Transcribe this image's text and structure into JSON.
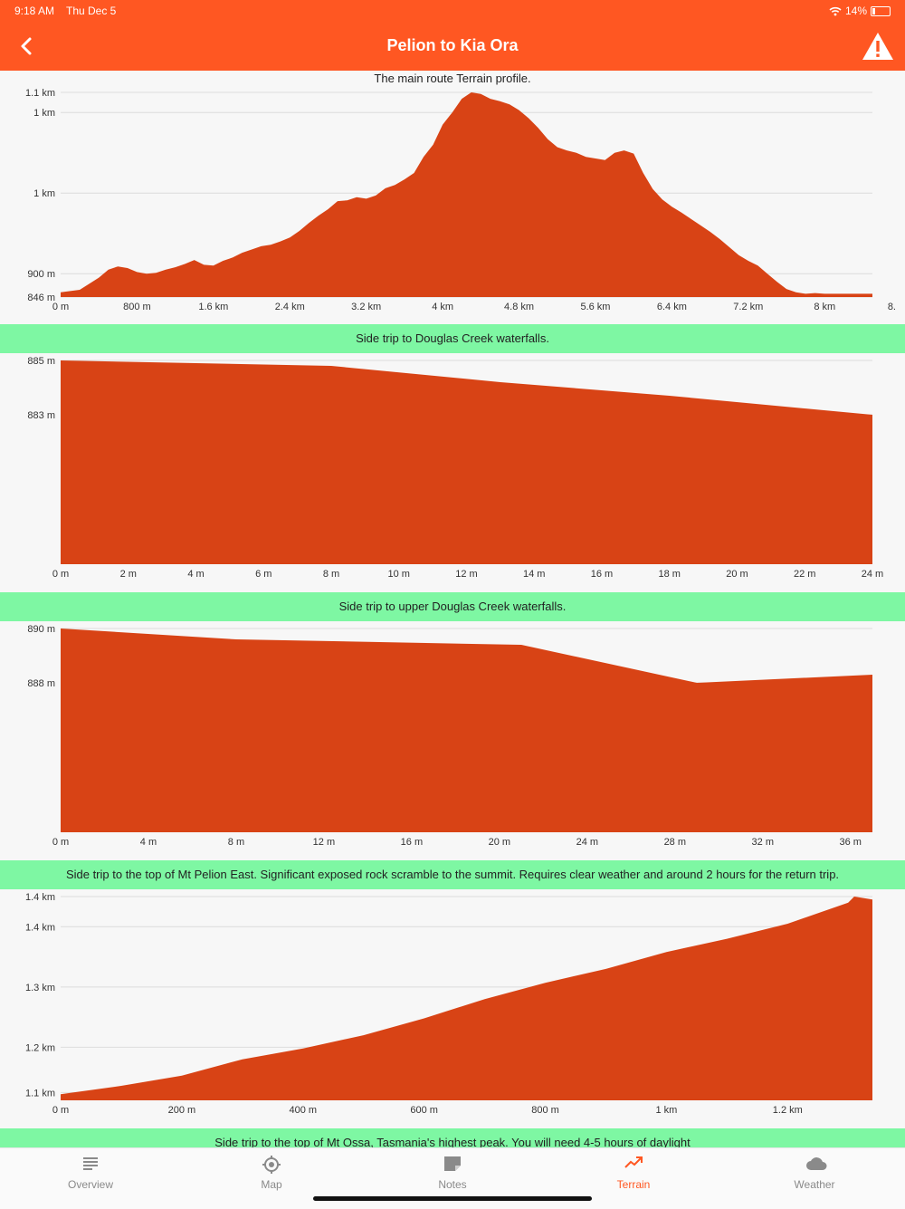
{
  "status": {
    "time": "9:18 AM",
    "date": "Thu Dec 5",
    "battery": "14%"
  },
  "header": {
    "title": "Pelion to Kia Ora"
  },
  "colors": {
    "accent": "#ff5722",
    "fill": "#d84315",
    "band": "#7ef7a3"
  },
  "charts": [
    {
      "title": "The main route Terrain profile.",
      "title_style": "plain",
      "y_ticks": [
        {
          "v": 1100,
          "label": "1.1 km"
        },
        {
          "v": 1075,
          "label": "1 km"
        },
        {
          "v": 975,
          "label": "1 km"
        },
        {
          "v": 875,
          "label": "900 m"
        },
        {
          "v": 846,
          "label": "846 m"
        }
      ],
      "x_ticks": [
        {
          "v": 0,
          "label": "0 m"
        },
        {
          "v": 800,
          "label": "800 m"
        },
        {
          "v": 1600,
          "label": "1.6 km"
        },
        {
          "v": 2400,
          "label": "2.4 km"
        },
        {
          "v": 3200,
          "label": "3.2 km"
        },
        {
          "v": 4000,
          "label": "4 km"
        },
        {
          "v": 4800,
          "label": "4.8 km"
        },
        {
          "v": 5600,
          "label": "5.6 km"
        },
        {
          "v": 6400,
          "label": "6.4 km"
        },
        {
          "v": 7200,
          "label": "7.2 km"
        },
        {
          "v": 8000,
          "label": "8 km"
        },
        {
          "v": 8800,
          "label": "8."
        }
      ]
    },
    {
      "title": "Side trip to Douglas Creek waterfalls.",
      "title_style": "band",
      "y_ticks": [
        {
          "v": 885,
          "label": "885 m"
        },
        {
          "v": 883,
          "label": "883 m"
        }
      ],
      "x_ticks": [
        {
          "v": 0,
          "label": "0 m"
        },
        {
          "v": 2,
          "label": "2 m"
        },
        {
          "v": 4,
          "label": "4 m"
        },
        {
          "v": 6,
          "label": "6 m"
        },
        {
          "v": 8,
          "label": "8 m"
        },
        {
          "v": 10,
          "label": "10 m"
        },
        {
          "v": 12,
          "label": "12 m"
        },
        {
          "v": 14,
          "label": "14 m"
        },
        {
          "v": 16,
          "label": "16 m"
        },
        {
          "v": 18,
          "label": "18 m"
        },
        {
          "v": 20,
          "label": "20 m"
        },
        {
          "v": 22,
          "label": "22 m"
        },
        {
          "v": 24,
          "label": "24 m"
        }
      ]
    },
    {
      "title": "Side trip to upper Douglas Creek waterfalls.",
      "title_style": "band",
      "y_ticks": [
        {
          "v": 890,
          "label": "890 m"
        },
        {
          "v": 888,
          "label": "888 m"
        }
      ],
      "x_ticks": [
        {
          "v": 0,
          "label": "0 m"
        },
        {
          "v": 4,
          "label": "4 m"
        },
        {
          "v": 8,
          "label": "8 m"
        },
        {
          "v": 12,
          "label": "12 m"
        },
        {
          "v": 16,
          "label": "16 m"
        },
        {
          "v": 20,
          "label": "20 m"
        },
        {
          "v": 24,
          "label": "24 m"
        },
        {
          "v": 28,
          "label": "28 m"
        },
        {
          "v": 32,
          "label": "32 m"
        },
        {
          "v": 36,
          "label": "36 m"
        }
      ]
    },
    {
      "title": "Side trip to the top of Mt Pelion East. Significant exposed rock scramble to the summit. Requires clear weather and around 2 hours for the return trip.",
      "title_style": "band",
      "y_ticks": [
        {
          "v": 1450,
          "label": "1.4 km"
        },
        {
          "v": 1400,
          "label": "1.4 km"
        },
        {
          "v": 1300,
          "label": "1.3 km"
        },
        {
          "v": 1200,
          "label": "1.2 km"
        },
        {
          "v": 1125,
          "label": "1.1 km"
        }
      ],
      "x_ticks": [
        {
          "v": 0,
          "label": "0 m"
        },
        {
          "v": 200,
          "label": "200 m"
        },
        {
          "v": 400,
          "label": "400 m"
        },
        {
          "v": 600,
          "label": "600 m"
        },
        {
          "v": 800,
          "label": "800 m"
        },
        {
          "v": 1000,
          "label": "1 km"
        },
        {
          "v": 1200,
          "label": "1.2 km"
        }
      ]
    },
    {
      "title": "Side trip to the top of Mt Ossa, Tasmania's highest peak. You will need 4-5 hours of daylight",
      "title_style": "band"
    }
  ],
  "chart_data": [
    {
      "type": "area",
      "title": "The main route Terrain profile.",
      "xlabel": "",
      "ylabel": "",
      "xlim": [
        0,
        8500
      ],
      "ylim": [
        846,
        1100
      ],
      "grid": true,
      "x": [
        0,
        200,
        400,
        500,
        600,
        700,
        800,
        900,
        1000,
        1100,
        1200,
        1300,
        1400,
        1500,
        1600,
        1700,
        1800,
        1900,
        2000,
        2100,
        2200,
        2300,
        2400,
        2500,
        2600,
        2700,
        2800,
        2900,
        3000,
        3100,
        3200,
        3300,
        3400,
        3500,
        3600,
        3700,
        3800,
        3900,
        4000,
        4100,
        4200,
        4300,
        4400,
        4500,
        4600,
        4700,
        4800,
        4900,
        5000,
        5100,
        5200,
        5300,
        5400,
        5500,
        5600,
        5700,
        5800,
        5900,
        6000,
        6100,
        6200,
        6300,
        6400,
        6500,
        6600,
        6700,
        6800,
        6900,
        7000,
        7100,
        7200,
        7300,
        7400,
        7500,
        7600,
        7700,
        7800,
        7900,
        8000,
        8200,
        8400,
        8500
      ],
      "y": [
        852,
        855,
        870,
        880,
        884,
        882,
        877,
        875,
        876,
        880,
        883,
        887,
        892,
        886,
        885,
        891,
        895,
        901,
        905,
        909,
        911,
        915,
        920,
        928,
        938,
        947,
        955,
        965,
        966,
        970,
        968,
        972,
        981,
        985,
        992,
        1000,
        1020,
        1035,
        1060,
        1075,
        1092,
        1100,
        1098,
        1092,
        1089,
        1085,
        1078,
        1068,
        1056,
        1042,
        1032,
        1028,
        1025,
        1020,
        1018,
        1016,
        1025,
        1028,
        1024,
        1000,
        980,
        967,
        958,
        951,
        943,
        935,
        927,
        918,
        908,
        898,
        891,
        885,
        875,
        865,
        856,
        852,
        850,
        851,
        850,
        850,
        850,
        850
      ]
    },
    {
      "type": "area",
      "title": "Side trip to Douglas Creek waterfalls.",
      "xlabel": "",
      "ylabel": "",
      "xlim": [
        0,
        24
      ],
      "ylim": [
        877.5,
        885
      ],
      "grid": true,
      "x": [
        0,
        8,
        13,
        18,
        24
      ],
      "y": [
        885,
        884.8,
        884.2,
        883.7,
        883
      ]
    },
    {
      "type": "area",
      "title": "Side trip to upper Douglas Creek waterfalls.",
      "xlabel": "",
      "ylabel": "",
      "xlim": [
        0,
        37
      ],
      "ylim": [
        882.5,
        890
      ],
      "grid": true,
      "x": [
        0,
        8,
        21,
        29,
        37
      ],
      "y": [
        890,
        889.6,
        889.4,
        888,
        888.3
      ]
    },
    {
      "type": "area",
      "title": "Side trip to the top of Mt Pelion East. Significant exposed rock scramble to the summit. Requires clear weather and around 2 hours for the return trip.",
      "xlabel": "",
      "ylabel": "",
      "xlim": [
        0,
        1340
      ],
      "ylim": [
        1112,
        1450
      ],
      "grid": true,
      "x": [
        0,
        100,
        200,
        300,
        400,
        500,
        600,
        700,
        800,
        900,
        1000,
        1100,
        1200,
        1300,
        1310,
        1340
      ],
      "y": [
        1122,
        1136,
        1153,
        1180,
        1198,
        1220,
        1248,
        1280,
        1307,
        1330,
        1358,
        1380,
        1405,
        1440,
        1450,
        1445
      ]
    }
  ],
  "tabs": [
    {
      "label": "Overview",
      "icon": "list-icon",
      "active": false
    },
    {
      "label": "Map",
      "icon": "location-target-icon",
      "active": false
    },
    {
      "label": "Notes",
      "icon": "note-icon",
      "active": false
    },
    {
      "label": "Terrain",
      "icon": "trend-icon",
      "active": true
    },
    {
      "label": "Weather",
      "icon": "cloud-icon",
      "active": false
    }
  ]
}
